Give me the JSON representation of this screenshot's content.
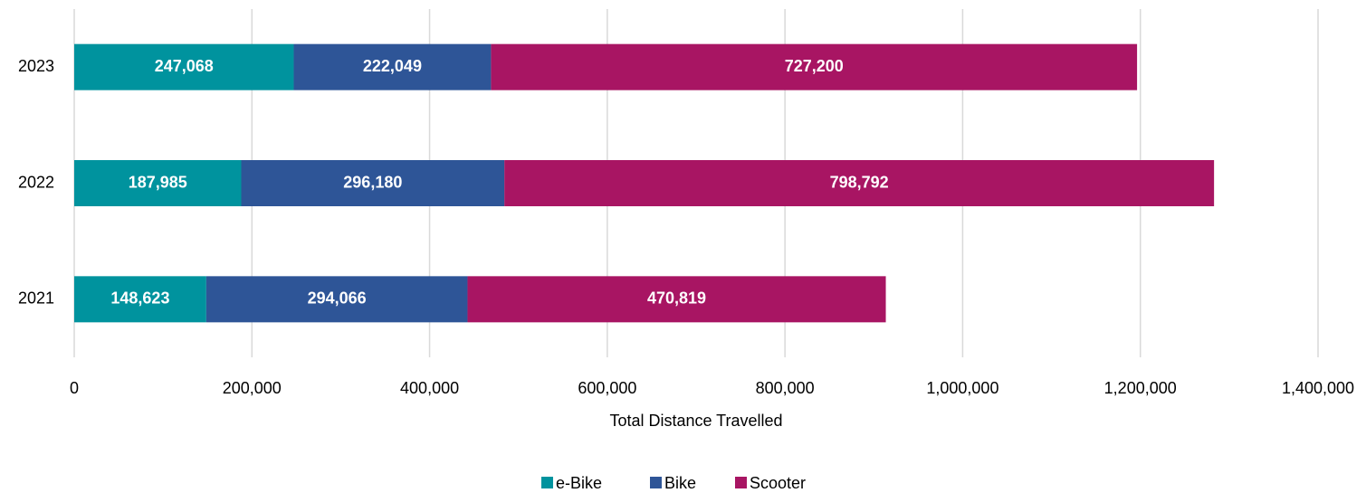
{
  "chart_data": {
    "type": "stacked_barh",
    "x_label": "Total Distance Travelled",
    "categories": [
      "2023",
      "2022",
      "2021"
    ],
    "series": [
      {
        "name": "e-Bike",
        "color": "#00939e",
        "values": [
          247068,
          187985,
          148623
        ],
        "value_labels": [
          "247,068",
          "187,985",
          "148,623"
        ]
      },
      {
        "name": "Bike",
        "color": "#2e5597",
        "values": [
          222049,
          296180,
          294066
        ],
        "value_labels": [
          "222,049",
          "296,180",
          "294,066"
        ]
      },
      {
        "name": "Scooter",
        "color": "#a81563",
        "values": [
          727200,
          798792,
          470819
        ],
        "value_labels": [
          "727,200",
          "798,792",
          "470,819"
        ]
      }
    ],
    "xlim": [
      0,
      1400000
    ],
    "xticks": [
      0,
      {
        "value": 200000,
        "label": "200,000"
      },
      {
        "value": 400000,
        "label": "400,000"
      },
      {
        "value": 600000,
        "label": "600,000"
      },
      {
        "value": 800000,
        "label": "800,000"
      },
      {
        "value": 1000000,
        "label": "1,000,000"
      },
      {
        "value": 1200000,
        "label": "1,200,000"
      },
      {
        "value": 1400000,
        "label": "1,400,000"
      }
    ],
    "grid": true,
    "legend": "bottom"
  }
}
